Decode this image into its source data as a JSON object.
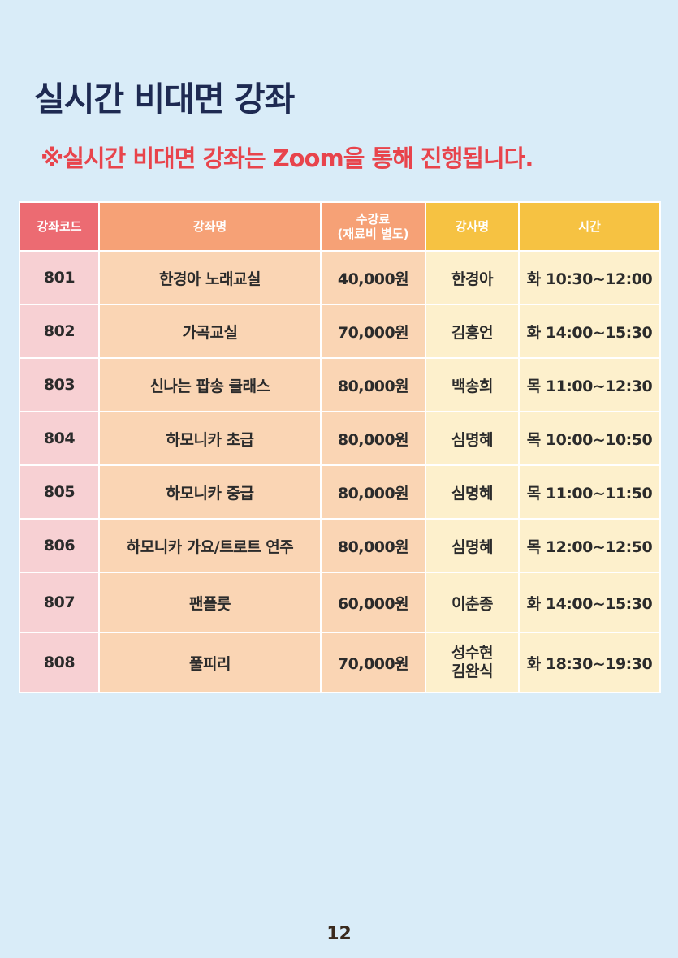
{
  "page": {
    "title": "실시간 비대면 강좌",
    "notice": "※실시간 비대면 강좌는 Zoom을 통해 진행됩니다.",
    "page_number": "12"
  },
  "table": {
    "headers": {
      "code": "강좌코드",
      "name": "강좌명",
      "fee_line1": "수강료",
      "fee_line2": "(재료비 별도)",
      "teacher": "강사명",
      "time": "시간"
    },
    "rows": [
      {
        "code": "801",
        "name": "한경아 노래교실",
        "fee": "40,000원",
        "teacher": "한경아",
        "teacher2": "",
        "time": "화 10:30~12:00"
      },
      {
        "code": "802",
        "name": "가곡교실",
        "fee": "70,000원",
        "teacher": "김흥언",
        "teacher2": "",
        "time": "화 14:00~15:30"
      },
      {
        "code": "803",
        "name": "신나는 팝송 클래스",
        "fee": "80,000원",
        "teacher": "백송희",
        "teacher2": "",
        "time": "목 11:00~12:30"
      },
      {
        "code": "804",
        "name": "하모니카 초급",
        "fee": "80,000원",
        "teacher": "심명혜",
        "teacher2": "",
        "time": "목 10:00~10:50"
      },
      {
        "code": "805",
        "name": "하모니카 중급",
        "fee": "80,000원",
        "teacher": "심명혜",
        "teacher2": "",
        "time": "목 11:00~11:50"
      },
      {
        "code": "806",
        "name": "하모니카 가요/트로트 연주",
        "fee": "80,000원",
        "teacher": "심명혜",
        "teacher2": "",
        "time": "목 12:00~12:50"
      },
      {
        "code": "807",
        "name": "팬플룻",
        "fee": "60,000원",
        "teacher": "이춘종",
        "teacher2": "",
        "time": "화 14:00~15:30"
      },
      {
        "code": "808",
        "name": "풀피리",
        "fee": "70,000원",
        "teacher": "성수현",
        "teacher2": "김완식",
        "time": "화 18:30~19:30"
      }
    ]
  },
  "colors": {
    "background": "#d9ecf8",
    "title": "#1e2a52",
    "notice": "#e8444c",
    "header_code": "#ec6b72",
    "header_name_fee": "#f6a176",
    "header_teacher_time": "#f6c242"
  }
}
